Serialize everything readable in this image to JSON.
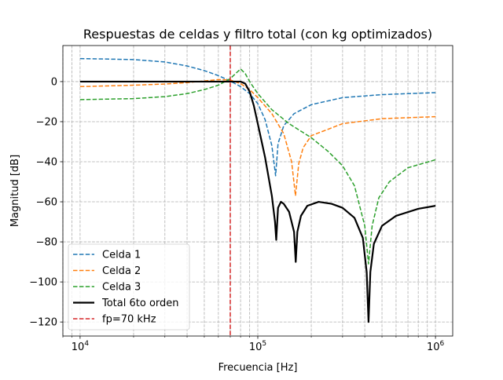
{
  "chart_data": {
    "type": "line",
    "title": "Respuestas de celdas y filtro total (con kg optimizados)",
    "xlabel": "Frecuencia [Hz]",
    "ylabel": "Magnitud [dB]",
    "xscale": "log",
    "xlim": [
      8000,
      1250000
    ],
    "ylim": [
      -127,
      18
    ],
    "grid": true,
    "legend_position": "lower-left",
    "x_ticks": [
      {
        "value": 10000,
        "base": "10",
        "exp": "4"
      },
      {
        "value": 100000,
        "base": "10",
        "exp": "5"
      },
      {
        "value": 1000000,
        "base": "10",
        "exp": "6"
      }
    ],
    "y_ticks": [
      {
        "value": 0,
        "label": "0"
      },
      {
        "value": -20,
        "label": "−20"
      },
      {
        "value": -40,
        "label": "−40"
      },
      {
        "value": -60,
        "label": "−60"
      },
      {
        "value": -80,
        "label": "−80"
      },
      {
        "value": -100,
        "label": "−100"
      },
      {
        "value": -120,
        "label": "−120"
      }
    ],
    "series": [
      {
        "name": "Celda 1",
        "color": "#1f77b4",
        "style": "dashed",
        "width": 1.5,
        "x": [
          10000,
          20000,
          30000,
          40000,
          50000,
          60000,
          70000,
          80000,
          90000,
          100000,
          110000,
          120000,
          126000,
          130000,
          140000,
          160000,
          200000,
          300000,
          500000,
          1000000
        ],
        "y": [
          11.5,
          11.0,
          9.8,
          7.8,
          5.5,
          3.0,
          0.3,
          -2.5,
          -6,
          -11,
          -19,
          -32,
          -47,
          -31,
          -22,
          -16,
          -11.5,
          -8,
          -6.5,
          -5.5
        ]
      },
      {
        "name": "Celda 2",
        "color": "#ff7f0e",
        "style": "dashed",
        "width": 1.5,
        "x": [
          10000,
          20000,
          30000,
          40000,
          50000,
          60000,
          70000,
          80000,
          90000,
          100000,
          120000,
          140000,
          155000,
          163000,
          170000,
          180000,
          200000,
          300000,
          500000,
          1000000
        ],
        "y": [
          -2.5,
          -1.8,
          -1.2,
          -0.5,
          0.3,
          1.0,
          0.8,
          -1.0,
          -4,
          -8,
          -16,
          -26,
          -40,
          -57,
          -41,
          -33,
          -27,
          -21,
          -18.5,
          -17.5
        ]
      },
      {
        "name": "Celda 3",
        "color": "#2ca02c",
        "style": "dashed",
        "width": 1.5,
        "x": [
          10000,
          20000,
          30000,
          40000,
          50000,
          60000,
          70000,
          75000,
          80000,
          85000,
          90000,
          100000,
          120000,
          150000,
          200000,
          250000,
          300000,
          350000,
          400000,
          420000,
          440000,
          480000,
          550000,
          700000,
          1000000
        ],
        "y": [
          -9,
          -8.5,
          -7.5,
          -6,
          -4,
          -1.8,
          1.5,
          4,
          6.3,
          4,
          0,
          -6,
          -14,
          -21,
          -28,
          -35,
          -42,
          -52,
          -72,
          -91,
          -72,
          -58,
          -50,
          -43,
          -39
        ]
      },
      {
        "name": "Total 6to orden",
        "color": "#000000",
        "style": "solid",
        "width": 2.2,
        "x": [
          10000,
          30000,
          50000,
          60000,
          70000,
          75000,
          80000,
          85000,
          90000,
          95000,
          100000,
          110000,
          120000,
          125000,
          127000,
          130000,
          135000,
          140000,
          150000,
          160000,
          163500,
          167000,
          175000,
          190000,
          220000,
          260000,
          300000,
          350000,
          390000,
          410000,
          420000,
          430000,
          450000,
          500000,
          600000,
          800000,
          1000000
        ],
        "y": [
          0,
          0,
          0,
          0,
          0,
          0,
          0,
          -1,
          -5,
          -12,
          -21,
          -38,
          -57,
          -70,
          -79,
          -63,
          -60,
          -61,
          -65,
          -75,
          -90,
          -75,
          -67,
          -62,
          -60,
          -61,
          -63,
          -68,
          -78,
          -95,
          -120,
          -95,
          -81,
          -72,
          -67,
          -63.5,
          -62
        ]
      }
    ],
    "vlines": [
      {
        "name": "fp=70 kHz",
        "x": 70000,
        "color": "#d62728",
        "style": "dashed",
        "width": 1.5
      }
    ]
  }
}
